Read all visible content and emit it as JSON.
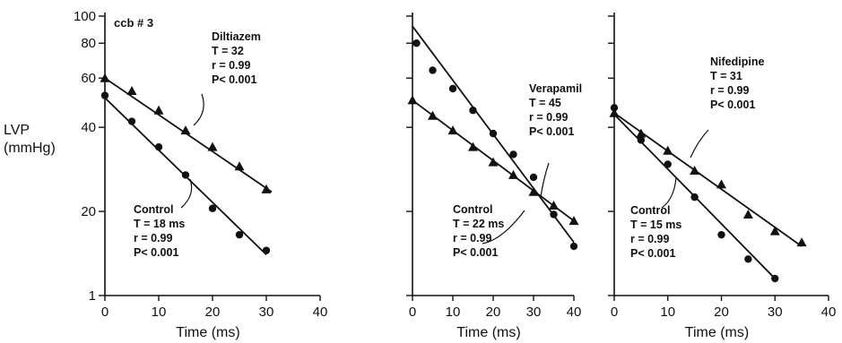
{
  "figure": {
    "ylabel_line1": "LVP",
    "ylabel_line2": "(mmHg)",
    "y_tick_labels": [
      "100",
      "80",
      "60",
      "40",
      "20",
      "1"
    ]
  },
  "chart_data": [
    {
      "type": "scatter",
      "panel_label": "ccb # 3",
      "xlabel": "Time (ms)",
      "ylabel": "LVP (mmHg)",
      "xlim": [
        0,
        40
      ],
      "ylim": [
        10,
        100
      ],
      "y_scale": "log",
      "x_ticks": [
        0,
        10,
        20,
        30,
        40
      ],
      "grid": false,
      "series": [
        {
          "name": "Diltiazem",
          "marker": "triangle",
          "x": [
            0,
            5,
            10,
            15,
            20,
            25,
            30
          ],
          "y": [
            60,
            54,
            46,
            39,
            34,
            29,
            24
          ],
          "fit": {
            "x": [
              0,
              31
            ],
            "y": [
              60,
              23.5
            ]
          },
          "annotation": [
            "Diltiazem",
            "T = 32",
            "r = 0.99",
            "P< 0.001"
          ]
        },
        {
          "name": "Control",
          "marker": "circle",
          "x": [
            0,
            5,
            10,
            15,
            20,
            25,
            30
          ],
          "y": [
            52,
            42,
            34,
            27,
            20.5,
            16.5,
            14.5
          ],
          "fit": {
            "x": [
              0,
              30
            ],
            "y": [
              51,
              14
            ]
          },
          "annotation": [
            "Control",
            "T = 18 ms",
            "r = 0.99",
            "P< 0.001"
          ]
        }
      ]
    },
    {
      "type": "scatter",
      "xlabel": "Time (ms)",
      "xlim": [
        0,
        40
      ],
      "ylim": [
        10,
        100
      ],
      "y_scale": "log",
      "x_ticks": [
        0,
        10,
        20,
        30,
        40
      ],
      "grid": false,
      "series": [
        {
          "name": "Verapamil",
          "marker": "triangle",
          "x": [
            0,
            5,
            10,
            15,
            20,
            25,
            30,
            35,
            40
          ],
          "y": [
            50,
            44,
            39,
            34,
            30,
            27,
            23.5,
            21,
            18.5
          ],
          "fit": {
            "x": [
              0,
              40
            ],
            "y": [
              50,
              18.5
            ]
          },
          "annotation": [
            "Verapamil",
            "T = 45",
            "r = 0.99",
            "P< 0.001"
          ]
        },
        {
          "name": "Control",
          "marker": "circle",
          "x": [
            1,
            5,
            10,
            15,
            20,
            25,
            30,
            35,
            40
          ],
          "y": [
            80,
            64,
            55,
            46,
            38,
            32,
            26.5,
            19.5,
            15
          ],
          "fit": {
            "x": [
              0,
              40
            ],
            "y": [
              92,
              15.5
            ]
          },
          "annotation": [
            "Control",
            "T = 22 ms",
            "r = 0.99",
            "P< 0.001"
          ]
        }
      ]
    },
    {
      "type": "scatter",
      "xlabel": "Time (ms)",
      "xlim": [
        0,
        40
      ],
      "ylim": [
        10,
        100
      ],
      "y_scale": "log",
      "x_ticks": [
        0,
        10,
        20,
        30,
        40
      ],
      "grid": false,
      "series": [
        {
          "name": "Nifedipine",
          "marker": "triangle",
          "x": [
            0,
            5,
            10,
            15,
            20,
            25,
            30,
            35
          ],
          "y": [
            45,
            38,
            33,
            28,
            25,
            19.5,
            17,
            15.5
          ],
          "fit": {
            "x": [
              0,
              35
            ],
            "y": [
              45,
              15
            ]
          },
          "annotation": [
            "Nifedipine",
            "T = 31",
            "r = 0.99",
            "P< 0.001"
          ]
        },
        {
          "name": "Control",
          "marker": "circle",
          "x": [
            0,
            5,
            10,
            15,
            20,
            25,
            30
          ],
          "y": [
            47,
            36,
            29.5,
            22.5,
            16.5,
            13.5,
            11.5
          ],
          "fit": {
            "x": [
              0,
              30
            ],
            "y": [
              44.5,
              11.5
            ]
          },
          "annotation": [
            "Control",
            "T = 15 ms",
            "r = 0.99",
            "P< 0.001"
          ]
        }
      ]
    }
  ]
}
